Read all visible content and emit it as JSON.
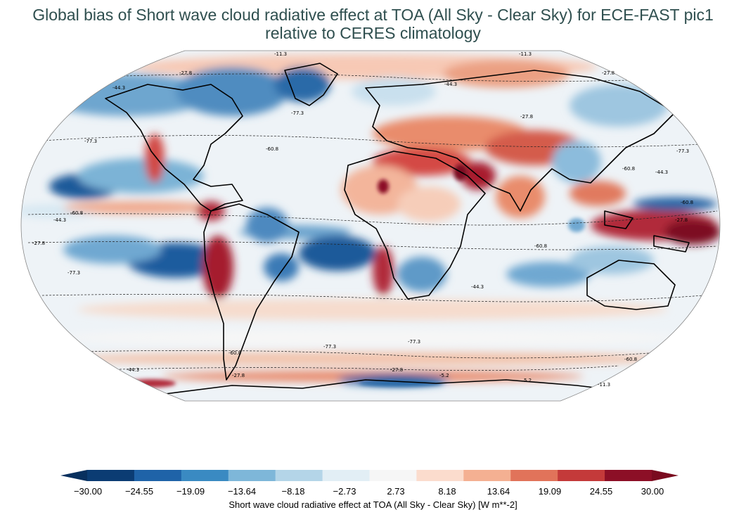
{
  "title": {
    "line1": "Global bias of Short wave cloud radiative effect at TOA (All Sky - Clear Sky) for ECE-FAST pic1",
    "line2": "relative to CERES climatology"
  },
  "colorbar": {
    "ticks": [
      "−30.00",
      "−24.55",
      "−19.09",
      "−13.64",
      "−8.18",
      "−2.73",
      "2.73",
      "8.18",
      "13.64",
      "19.09",
      "24.55",
      "30.00"
    ],
    "colors": [
      "#0b3c73",
      "#1f63a8",
      "#3a8ac2",
      "#7eb7d9",
      "#b4d5e8",
      "#e2eef5",
      "#f6f6f6",
      "#fbdccd",
      "#f4b092",
      "#e1735a",
      "#c43a3a",
      "#8c0f26"
    ],
    "extend_low_color": "#08305e",
    "extend_high_color": "#7a0b1f",
    "label": "Short wave cloud radiative effect at TOA (All Sky - Clear Sky) [W m**-2]"
  },
  "map_data": {
    "projection": "robinson",
    "contour_labels": [
      "-11.3",
      "-11.3",
      "-27.8",
      "-27.8",
      "-44.3",
      "-44.3",
      "-77.3",
      "-77.3",
      "-60.8",
      "-60.8",
      "-27.8",
      "-44.3",
      "-77.3",
      "-60.8",
      "-60.8",
      "-44.3",
      "-27.8",
      "-27.8",
      "-60.8",
      "-77.3",
      "-44.3",
      "-77.3",
      "-77.3",
      "-60.8",
      "-60.8",
      "-44.3",
      "-27.8",
      "-5.2",
      "5.2",
      "-27.8",
      "-11.3"
    ]
  }
}
